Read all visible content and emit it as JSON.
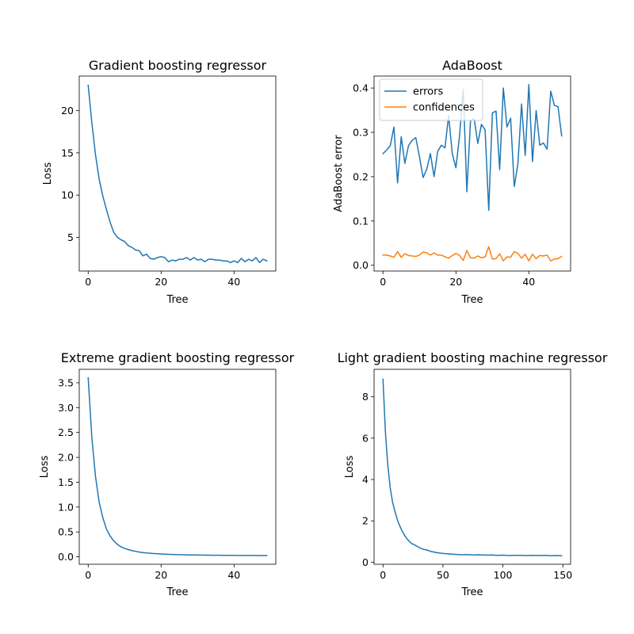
{
  "chart_data": [
    {
      "type": "line",
      "title": "Gradient boosting regressor",
      "xlabel": "Tree",
      "ylabel": "Loss",
      "xlim": [
        -2.45,
        51.45
      ],
      "ylim": [
        1.0,
        24.1
      ],
      "xticks": [
        0,
        20,
        40
      ],
      "yticks": [
        5,
        10,
        15,
        20
      ],
      "grid": false,
      "series": [
        {
          "color": "#1f77b4",
          "x": [
            0,
            1,
            2,
            3,
            4,
            5,
            6,
            7,
            8,
            9,
            10,
            11,
            12,
            13,
            14,
            15,
            16,
            17,
            18,
            19,
            20,
            21,
            22,
            23,
            24,
            25,
            26,
            27,
            28,
            29,
            30,
            31,
            32,
            33,
            34,
            35,
            36,
            37,
            38,
            39,
            40,
            41,
            42,
            43,
            44,
            45,
            46,
            47,
            48,
            49
          ],
          "y": [
            23.0,
            18.6,
            14.8,
            11.9,
            9.9,
            8.3,
            6.8,
            5.6,
            5.0,
            4.7,
            4.5,
            4.0,
            3.8,
            3.5,
            3.4,
            2.8,
            3.0,
            2.5,
            2.4,
            2.6,
            2.7,
            2.6,
            2.1,
            2.3,
            2.2,
            2.4,
            2.4,
            2.6,
            2.3,
            2.6,
            2.3,
            2.4,
            2.1,
            2.4,
            2.4,
            2.3,
            2.3,
            2.2,
            2.2,
            2.0,
            2.2,
            2.0,
            2.5,
            2.1,
            2.4,
            2.2,
            2.6,
            2.0,
            2.4,
            2.2
          ]
        }
      ]
    },
    {
      "type": "line",
      "title": "AdaBoost",
      "xlabel": "Tree",
      "ylabel": "AdaBoost error",
      "xlim": [
        -2.45,
        51.45
      ],
      "ylim": [
        -0.013,
        0.427
      ],
      "xticks": [
        0,
        20,
        40
      ],
      "yticks": [
        0.0,
        0.1,
        0.2,
        0.3,
        0.4
      ],
      "legend": "upper-left",
      "grid": false,
      "series": [
        {
          "name": "errors",
          "color": "#1f77b4",
          "x": [
            0,
            1,
            2,
            3,
            4,
            5,
            6,
            7,
            8,
            9,
            10,
            11,
            12,
            13,
            14,
            15,
            16,
            17,
            18,
            19,
            20,
            21,
            22,
            23,
            24,
            25,
            26,
            27,
            28,
            29,
            30,
            31,
            32,
            33,
            34,
            35,
            36,
            37,
            38,
            39,
            40,
            41,
            42,
            43,
            44,
            45,
            46,
            47,
            48,
            49
          ],
          "y": [
            0.252,
            0.26,
            0.27,
            0.312,
            0.186,
            0.29,
            0.23,
            0.27,
            0.282,
            0.288,
            0.245,
            0.198,
            0.217,
            0.252,
            0.2,
            0.257,
            0.271,
            0.265,
            0.338,
            0.252,
            0.22,
            0.293,
            0.397,
            0.166,
            0.326,
            0.331,
            0.275,
            0.318,
            0.306,
            0.124,
            0.344,
            0.348,
            0.216,
            0.4,
            0.312,
            0.332,
            0.178,
            0.229,
            0.364,
            0.248,
            0.408,
            0.234,
            0.349,
            0.271,
            0.276,
            0.262,
            0.393,
            0.361,
            0.358,
            0.292
          ]
        },
        {
          "name": "confidences",
          "color": "#ff7f0e",
          "x": [
            0,
            1,
            2,
            3,
            4,
            5,
            6,
            7,
            8,
            9,
            10,
            11,
            12,
            13,
            14,
            15,
            16,
            17,
            18,
            19,
            20,
            21,
            22,
            23,
            24,
            25,
            26,
            27,
            28,
            29,
            30,
            31,
            32,
            33,
            34,
            35,
            36,
            37,
            38,
            39,
            40,
            41,
            42,
            43,
            44,
            45,
            46,
            47,
            48,
            49
          ],
          "y": [
            0.023,
            0.023,
            0.021,
            0.018,
            0.031,
            0.018,
            0.026,
            0.022,
            0.021,
            0.02,
            0.023,
            0.03,
            0.028,
            0.023,
            0.028,
            0.023,
            0.023,
            0.019,
            0.016,
            0.022,
            0.027,
            0.022,
            0.011,
            0.033,
            0.017,
            0.016,
            0.021,
            0.017,
            0.019,
            0.042,
            0.014,
            0.015,
            0.026,
            0.01,
            0.019,
            0.018,
            0.031,
            0.027,
            0.016,
            0.025,
            0.01,
            0.025,
            0.015,
            0.022,
            0.021,
            0.023,
            0.01,
            0.014,
            0.015,
            0.02
          ]
        }
      ]
    },
    {
      "type": "line",
      "title": "Extreme gradient boosting regressor",
      "xlabel": "Tree",
      "ylabel": "Loss",
      "xlim": [
        -2.45,
        51.45
      ],
      "ylim": [
        -0.15,
        3.77
      ],
      "xticks": [
        0,
        20,
        40
      ],
      "yticks": [
        0.0,
        0.5,
        1.0,
        1.5,
        2.0,
        2.5,
        3.0,
        3.5
      ],
      "grid": false,
      "series": [
        {
          "color": "#1f77b4",
          "x": [
            0,
            1,
            2,
            3,
            4,
            5,
            6,
            7,
            8,
            9,
            10,
            11,
            12,
            13,
            14,
            15,
            16,
            17,
            18,
            19,
            20,
            21,
            22,
            23,
            24,
            25,
            26,
            27,
            28,
            29,
            30,
            31,
            32,
            33,
            34,
            35,
            36,
            37,
            38,
            39,
            40,
            41,
            42,
            43,
            44,
            45,
            46,
            47,
            48,
            49
          ],
          "y": [
            3.6,
            2.4,
            1.62,
            1.1,
            0.79,
            0.56,
            0.42,
            0.32,
            0.25,
            0.2,
            0.17,
            0.145,
            0.125,
            0.11,
            0.095,
            0.085,
            0.078,
            0.072,
            0.066,
            0.061,
            0.057,
            0.053,
            0.05,
            0.047,
            0.045,
            0.043,
            0.041,
            0.04,
            0.038,
            0.037,
            0.036,
            0.035,
            0.034,
            0.033,
            0.032,
            0.031,
            0.031,
            0.03,
            0.03,
            0.029,
            0.029,
            0.028,
            0.028,
            0.027,
            0.027,
            0.027,
            0.026,
            0.026,
            0.026,
            0.025
          ]
        }
      ]
    },
    {
      "type": "line",
      "title": "Light gradient boosting machine regressor",
      "xlabel": "Tree",
      "ylabel": "Loss",
      "xlim": [
        -7.45,
        156.45
      ],
      "ylim": [
        -0.1,
        9.33
      ],
      "xticks": [
        0,
        50,
        100,
        150
      ],
      "yticks": [
        0,
        2,
        4,
        6,
        8
      ],
      "grid": false,
      "series": [
        {
          "color": "#1f77b4",
          "x": [
            0,
            2,
            4,
            6,
            8,
            10,
            12,
            14,
            16,
            18,
            20,
            22,
            24,
            26,
            28,
            30,
            32,
            34,
            36,
            40,
            45,
            50,
            55,
            60,
            65,
            70,
            75,
            80,
            85,
            90,
            95,
            100,
            105,
            110,
            115,
            120,
            125,
            130,
            135,
            140,
            145,
            149
          ],
          "y": [
            8.85,
            6.3,
            4.7,
            3.6,
            2.9,
            2.45,
            2.05,
            1.75,
            1.5,
            1.3,
            1.13,
            1.0,
            0.9,
            0.85,
            0.78,
            0.72,
            0.66,
            0.62,
            0.6,
            0.52,
            0.46,
            0.42,
            0.4,
            0.38,
            0.36,
            0.37,
            0.35,
            0.36,
            0.34,
            0.35,
            0.33,
            0.34,
            0.32,
            0.33,
            0.33,
            0.32,
            0.33,
            0.32,
            0.33,
            0.31,
            0.32,
            0.31
          ]
        }
      ]
    }
  ]
}
